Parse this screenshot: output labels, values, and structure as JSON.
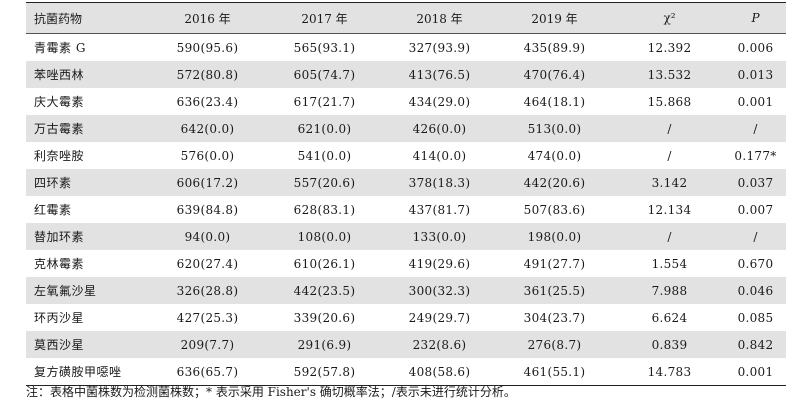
{
  "headers": [
    "抗菌药物",
    "2016 年",
    "2017 年",
    "2018 年",
    "2019 年",
    "χ²",
    "P"
  ],
  "rows": [
    {
      "drug": "青霉素 G",
      "y2016": "590(95.6)",
      "y2017": "565(93.1)",
      "y2018": "327(93.9)",
      "y2019": "435(89.9)",
      "chi2": "12.392",
      "p": "0.006"
    },
    {
      "drug": "苯唑西林",
      "y2016": "572(80.8)",
      "y2017": "605(74.7)",
      "y2018": "413(76.5)",
      "y2019": "470(76.4)",
      "chi2": "13.532",
      "p": "0.013"
    },
    {
      "drug": "庆大霉素",
      "y2016": "636(23.4)",
      "y2017": "617(21.7)",
      "y2018": "434(29.0)",
      "y2019": "464(18.1)",
      "chi2": "15.868",
      "p": "0.001"
    },
    {
      "drug": "万古霉素",
      "y2016": "642(0.0)",
      "y2017": "621(0.0)",
      "y2018": "426(0.0)",
      "y2019": "513(0.0)",
      "chi2": "/",
      "p": "/"
    },
    {
      "drug": "利奈唑胺",
      "y2016": "576(0.0)",
      "y2017": "541(0.0)",
      "y2018": "414(0.0)",
      "y2019": "474(0.0)",
      "chi2": "/",
      "p": "0.177*"
    },
    {
      "drug": "四环素",
      "y2016": "606(17.2)",
      "y2017": "557(20.6)",
      "y2018": "378(18.3)",
      "y2019": "442(20.6)",
      "chi2": "3.142",
      "p": "0.037"
    },
    {
      "drug": "红霉素",
      "y2016": "639(84.8)",
      "y2017": "628(83.1)",
      "y2018": "437(81.7)",
      "y2019": "507(83.6)",
      "chi2": "12.134",
      "p": "0.007"
    },
    {
      "drug": "替加环素",
      "y2016": "94(0.0)",
      "y2017": "108(0.0)",
      "y2018": "133(0.0)",
      "y2019": "198(0.0)",
      "chi2": "/",
      "p": "/"
    },
    {
      "drug": "克林霉素",
      "y2016": "620(27.4)",
      "y2017": "610(26.1)",
      "y2018": "419(29.6)",
      "y2019": "491(27.7)",
      "chi2": "1.554",
      "p": "0.670"
    },
    {
      "drug": "左氧氟沙星",
      "y2016": "326(28.8)",
      "y2017": "442(23.5)",
      "y2018": "300(32.3)",
      "y2019": "361(25.5)",
      "chi2": "7.988",
      "p": "0.046"
    },
    {
      "drug": "环丙沙星",
      "y2016": "427(25.3)",
      "y2017": "339(20.6)",
      "y2018": "249(29.7)",
      "y2019": "304(23.7)",
      "chi2": "6.624",
      "p": "0.085"
    },
    {
      "drug": "莫西沙星",
      "y2016": "209(7.7)",
      "y2017": "291(6.9)",
      "y2018": "232(8.6)",
      "y2019": "276(8.7)",
      "chi2": "0.839",
      "p": "0.842"
    },
    {
      "drug": "复方磺胺甲噁唑",
      "y2016": "636(65.7)",
      "y2017": "592(57.8)",
      "y2018": "408(58.6)",
      "y2019": "461(55.1)",
      "chi2": "14.783",
      "p": "0.001"
    }
  ],
  "note": "注：表格中菌株数为检测菌株数；* 表示采用 Fisher's 确切概率法；/表示未进行统计分析。"
}
